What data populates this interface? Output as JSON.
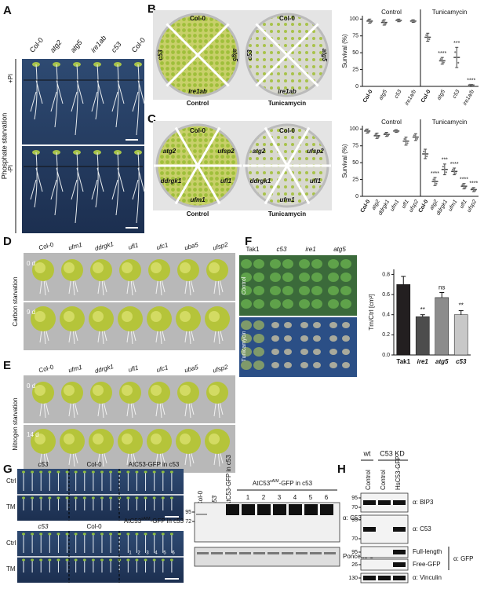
{
  "panels": {
    "A": {
      "label": "A",
      "genotypes": [
        "Col-0",
        "atg2",
        "atg5",
        "ire1ab",
        "c53",
        "Col-0"
      ],
      "rows": [
        "+Pi",
        "-Pi"
      ],
      "condition": "Phosphate starvation"
    },
    "B": {
      "label": "B",
      "plate": {
        "top": "Col-0",
        "left": "c53",
        "right": "atg5",
        "bottom": "ire1ab"
      },
      "captions": [
        "Control",
        "Tunicamycin"
      ]
    },
    "C": {
      "label": "C",
      "plate": {
        "top": "Col-0",
        "left": "atg2",
        "right": "ufsp2",
        "bottom_left": "ddrgk1",
        "bottom": "ufm1",
        "bottom_right": "ufl1"
      },
      "captions": [
        "Control",
        "Tunicamycin"
      ]
    },
    "D": {
      "label": "D",
      "genotypes": [
        "Col-0",
        "ufm1",
        "ddrgk1",
        "ufl1",
        "ufc1",
        "uba5",
        "ufsp2"
      ],
      "rows": [
        "0 d",
        "9 d"
      ],
      "condition": "Carbon starvation"
    },
    "E": {
      "label": "E",
      "genotypes": [
        "Col-0",
        "ufm1",
        "ddrgk1",
        "ufl1",
        "ufc1",
        "uba5",
        "ufsp2"
      ],
      "rows": [
        "0 d",
        "14 d"
      ],
      "condition": "Nitrogen starvation"
    },
    "F": {
      "label": "F",
      "genotypes": [
        "Tak1",
        "c53",
        "ire1",
        "atg5"
      ],
      "rows": [
        "Control",
        "Tunicamycin"
      ]
    },
    "G": {
      "label": "G",
      "top": {
        "groups": [
          "c53",
          "Col-0",
          "AtC53-GFP in c53"
        ]
      },
      "bottom": {
        "groups": [
          "c53",
          "Col-0"
        ],
        "construct": {
          "base": "AtC53",
          "sup": "sAIM",
          "rest": "-GFP in c53"
        },
        "lines": [
          "1",
          "2",
          "3",
          "4",
          "5",
          "6"
        ]
      },
      "rows": [
        "Ctrl",
        "TM"
      ],
      "blot": {
        "lanes": [
          "Col-0",
          "c53",
          "AtC53-GFP in c53"
        ],
        "bracket": {
          "base": "AtC53",
          "sup": "sAIM",
          "rest": "-GFP in c53"
        },
        "lines": [
          "1",
          "2",
          "3",
          "4",
          "5",
          "6"
        ],
        "markers": [
          95,
          72
        ],
        "antibody": "α: C53",
        "stain": "Ponceau S"
      }
    },
    "H": {
      "label": "H",
      "groups": [
        "wt",
        "C53 KD"
      ],
      "lanes": [
        "Control",
        "Control",
        "HsC53-GFP"
      ],
      "blots": [
        {
          "markers": [
            95,
            70
          ],
          "label": "α: BIP3"
        },
        {
          "markers": [
            95,
            70
          ],
          "label": "α: C53"
        },
        {
          "markers": [
            95
          ],
          "label": "Full-length"
        },
        {
          "markers": [
            26
          ],
          "label": "Free-GFP"
        },
        {
          "markers": [
            130
          ],
          "label": "α: Vinculin"
        }
      ],
      "gfp": "α: GFP"
    }
  },
  "chart_data": [
    {
      "type": "dot",
      "ylabel": "Survival (%)",
      "categories": [
        "Col-0",
        "atg5",
        "c53",
        "ire1a/b"
      ],
      "series": [
        {
          "name": "Control",
          "color": "#444444",
          "values": [
            97,
            95,
            98,
            97
          ],
          "errors": [
            3,
            4,
            2,
            2
          ]
        },
        {
          "name": "Tunicamycin",
          "color": "#444444",
          "values": [
            73,
            38,
            43,
            2
          ],
          "errors": [
            6,
            5,
            15,
            1
          ],
          "annotations": [
            null,
            "****",
            "***",
            "****"
          ]
        }
      ],
      "ylim": [
        0,
        105
      ],
      "yticks": [
        0,
        25,
        50,
        75,
        100
      ]
    },
    {
      "type": "dot",
      "ylabel": "Survival (%)",
      "categories": [
        "Col-0",
        "atg2",
        "ddrgk1",
        "ufm1",
        "ufl1",
        "ufsp2"
      ],
      "series": [
        {
          "name": "Control",
          "color": "#444444",
          "values": [
            97,
            90,
            92,
            97,
            82,
            88
          ],
          "errors": [
            3,
            4,
            3,
            2,
            6,
            5
          ]
        },
        {
          "name": "Tunicamycin",
          "color": "#444444",
          "values": [
            63,
            22,
            40,
            37,
            15,
            10
          ],
          "errors": [
            7,
            6,
            8,
            5,
            4,
            3
          ],
          "annotations": [
            null,
            "****",
            "***",
            "****",
            "****",
            "****"
          ]
        }
      ],
      "ylim": [
        0,
        105
      ],
      "yticks": [
        0,
        25,
        50,
        75,
        100
      ]
    },
    {
      "type": "bar",
      "ylabel": "Tm/Ctrl [cm²]",
      "categories": [
        "Tak1",
        "ire1",
        "atg5",
        "c53"
      ],
      "values": [
        0.7,
        0.38,
        0.57,
        0.4
      ],
      "errors": [
        0.08,
        0.02,
        0.05,
        0.04
      ],
      "colors": [
        "#231f20",
        "#4d4d4d",
        "#8c8c8c",
        "#c8c8c8"
      ],
      "annotations": [
        null,
        "**",
        "ns",
        "**"
      ],
      "ylim": [
        0,
        0.85
      ],
      "yticks": [
        {
          "value": 0,
          "label": "0.0"
        },
        {
          "value": 0.2,
          "label": "0.2"
        },
        {
          "value": 0.4,
          "label": "0.4"
        },
        {
          "value": 0.6,
          "label": "0.6"
        },
        {
          "value": 0.8,
          "label": "0.8"
        }
      ]
    }
  ]
}
